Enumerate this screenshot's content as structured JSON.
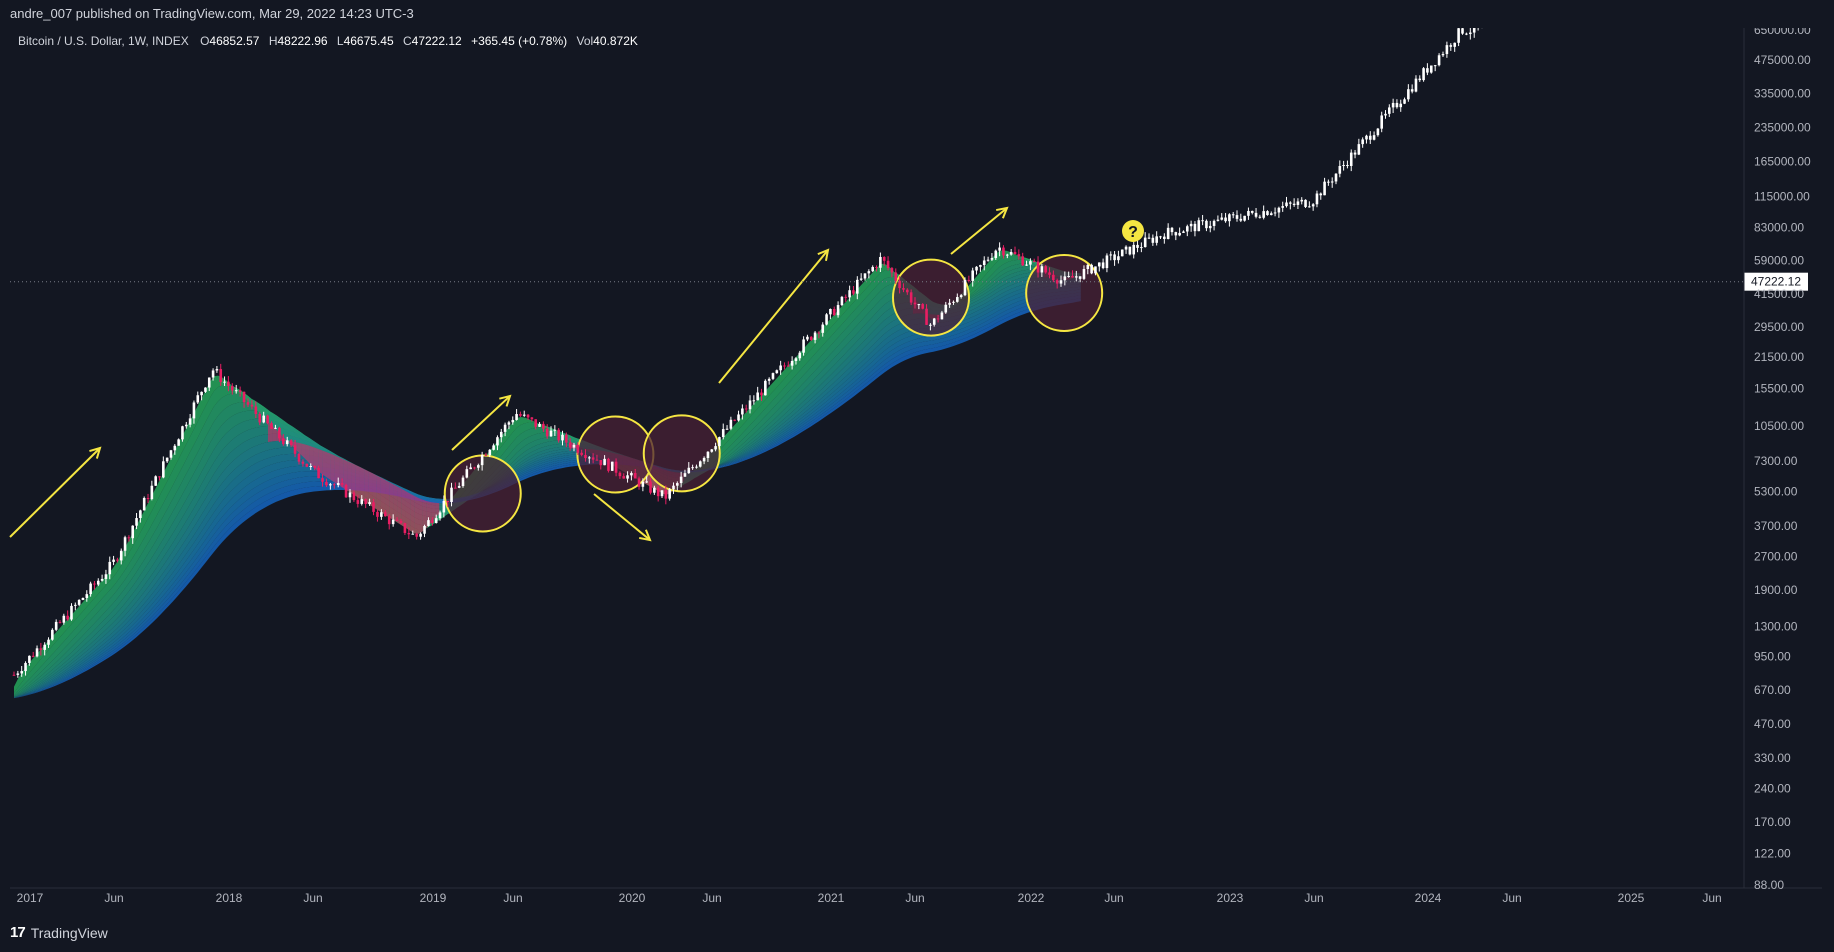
{
  "header": {
    "publisher": "andre_007 published on TradingView.com, Mar 29, 2022 14:23 UTC-3"
  },
  "symbol_line": {
    "name": "Bitcoin / U.S. Dollar, 1W, INDEX",
    "open_label": "O",
    "open": "46852.57",
    "high_label": "H",
    "high": "48222.96",
    "low_label": "L",
    "low": "46675.45",
    "close_label": "C",
    "close": "47222.12",
    "change": "+365.45 (+0.78%)",
    "vol_label": "Vol",
    "vol": "40.872K"
  },
  "footer": {
    "logo_text": "TradingView",
    "logo_mark": "17"
  },
  "colors": {
    "background": "#131722",
    "up": "#ffffff",
    "down": "#e91e63",
    "annotation": "#f5e642",
    "circle_fill": "#4a2236",
    "ribbon_top": "#26a65b",
    "ribbon_bottom": "#1565c0",
    "ribbon_bear": "#e91e63"
  },
  "chart_data": {
    "type": "candlestick",
    "scale": "log",
    "ylim": [
      88,
      650000
    ],
    "y_ticks": [
      "650000.00",
      "475000.00",
      "335000.00",
      "235000.00",
      "165000.00",
      "115000.00",
      "83000.00",
      "59000.00",
      "41500.00",
      "29500.00",
      "21500.00",
      "15500.00",
      "10500.00",
      "7300.00",
      "5300.00",
      "3700.00",
      "2700.00",
      "1900.00",
      "1300.00",
      "950.00",
      "670.00",
      "470.00",
      "330.00",
      "240.00",
      "170.00",
      "122.00",
      "88.00"
    ],
    "x_ticks": [
      "2017",
      "Jun",
      "2018",
      "Jun",
      "2019",
      "Jun",
      "2020",
      "Jun",
      "2021",
      "Jun",
      "2022",
      "Jun",
      "2023",
      "Jun",
      "2024",
      "Jun",
      "2025",
      "Jun"
    ],
    "last_price": "47222.12",
    "annotation_question": "?",
    "key_points": [
      {
        "date": "2016-12",
        "price": 780
      },
      {
        "date": "2017-06",
        "price": 2500
      },
      {
        "date": "2017-12",
        "price": 19000
      },
      {
        "date": "2018-06",
        "price": 6500
      },
      {
        "date": "2018-12",
        "price": 3300
      },
      {
        "date": "2019-06",
        "price": 12000
      },
      {
        "date": "2020-03",
        "price": 5000
      },
      {
        "date": "2021-04",
        "price": 60000
      },
      {
        "date": "2021-07",
        "price": 30000
      },
      {
        "date": "2021-11",
        "price": 68000
      },
      {
        "date": "2022-03",
        "price": 47222
      },
      {
        "date": "2022-09",
        "price": 78000
      },
      {
        "date": "2023-06",
        "price": 110000
      },
      {
        "date": "2024-03",
        "price": 650000
      }
    ],
    "circles": [
      {
        "date": "2019-04",
        "price": 5200
      },
      {
        "date": "2019-12",
        "price": 7800
      },
      {
        "date": "2020-04",
        "price": 7900
      },
      {
        "date": "2021-07",
        "price": 40000
      },
      {
        "date": "2022-03",
        "price": 42000
      }
    ]
  }
}
